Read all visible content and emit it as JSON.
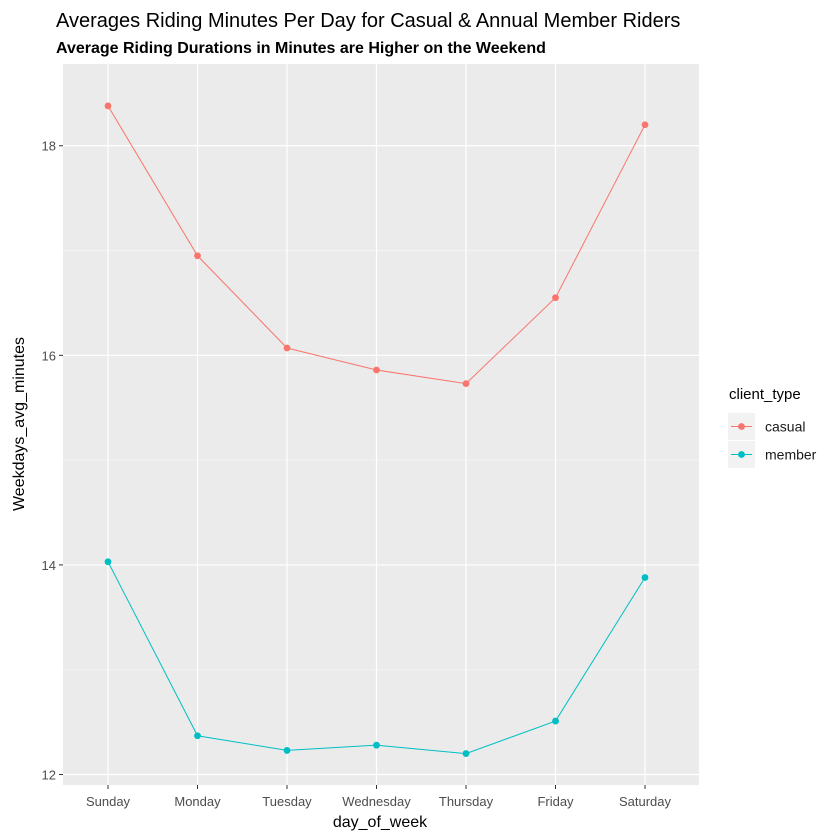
{
  "chart_data": {
    "type": "line",
    "title": "Averages Riding Minutes Per Day for Casual & Annual Member Riders",
    "subtitle": "Average Riding Durations in Minutes are Higher on the Weekend",
    "xlabel": "day_of_week",
    "ylabel": "Weekdays_avg_minutes",
    "categories": [
      "Sunday",
      "Monday",
      "Tuesday",
      "Wednesday",
      "Thursday",
      "Friday",
      "Saturday"
    ],
    "y_ticks": [
      12,
      14,
      16,
      18
    ],
    "ylim": [
      11.9,
      18.78
    ],
    "grid": true,
    "legend": {
      "title": "client_type",
      "position": "right"
    },
    "series": [
      {
        "name": "casual",
        "color": "#F8766D",
        "values": [
          18.38,
          16.95,
          16.07,
          15.86,
          15.73,
          16.55,
          18.2
        ]
      },
      {
        "name": "member",
        "color": "#00BFC4",
        "values": [
          14.03,
          12.37,
          12.23,
          12.28,
          12.2,
          12.51,
          13.88
        ]
      }
    ]
  }
}
